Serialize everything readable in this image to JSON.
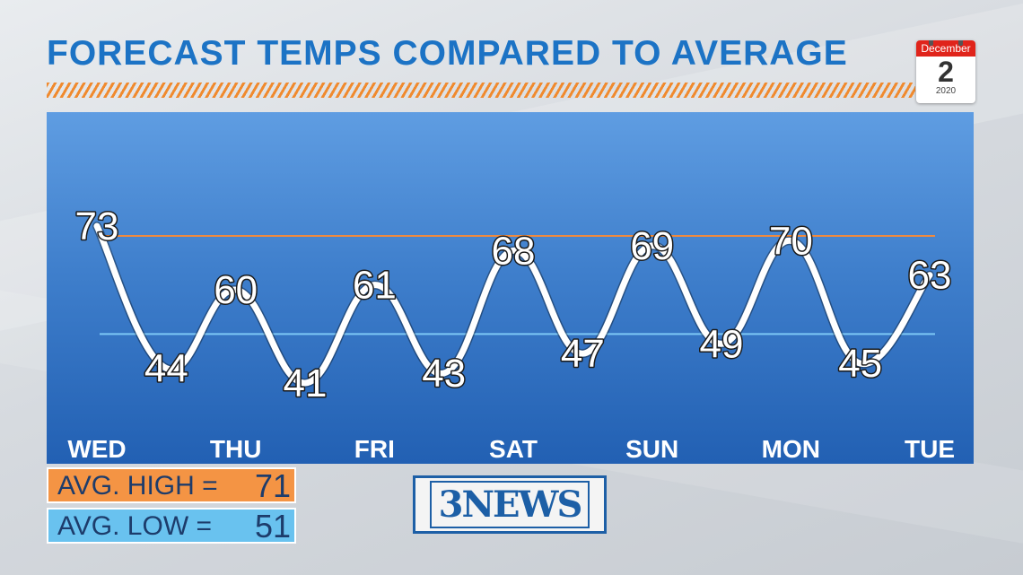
{
  "title": "FORECAST TEMPS COMPARED TO AVERAGE",
  "calendar": {
    "month": "December",
    "day": "2",
    "year": "2020"
  },
  "legend": {
    "high_label": "AVG. HIGH =",
    "high_value": "71",
    "low_label": "AVG. LOW =",
    "low_value": "51"
  },
  "logo": {
    "text": "3NEWS"
  },
  "colors": {
    "title": "#1c73c5",
    "hatch": "#f08a2e",
    "avg_high_line": "#f08a3e",
    "avg_low_line": "#7cc8f5",
    "line": "#ffffff",
    "high_box": "#f49444",
    "low_box": "#69c2ef",
    "logo": "#1d5fa6"
  },
  "chart_data": {
    "type": "line",
    "title": "FORECAST TEMPS COMPARED TO AVERAGE",
    "categories": [
      "WED",
      "THU",
      "FRI",
      "SAT",
      "SUN",
      "MON",
      "TUE"
    ],
    "x": [
      0,
      0.5,
      1,
      1.5,
      2,
      2.5,
      3,
      3.5,
      4,
      4.5,
      5,
      5.5,
      6
    ],
    "y": [
      73,
      44,
      60,
      41,
      61,
      43,
      68,
      47,
      69,
      49,
      70,
      45,
      63
    ],
    "data_labels": [
      "73",
      "44",
      "60",
      "41",
      "61",
      "43",
      "68",
      "47",
      "69",
      "49",
      "70",
      "45",
      "63"
    ],
    "reference_lines": [
      {
        "label": "AVG. HIGH",
        "value": 71
      },
      {
        "label": "AVG. LOW",
        "value": 51
      }
    ],
    "grid": false
  }
}
